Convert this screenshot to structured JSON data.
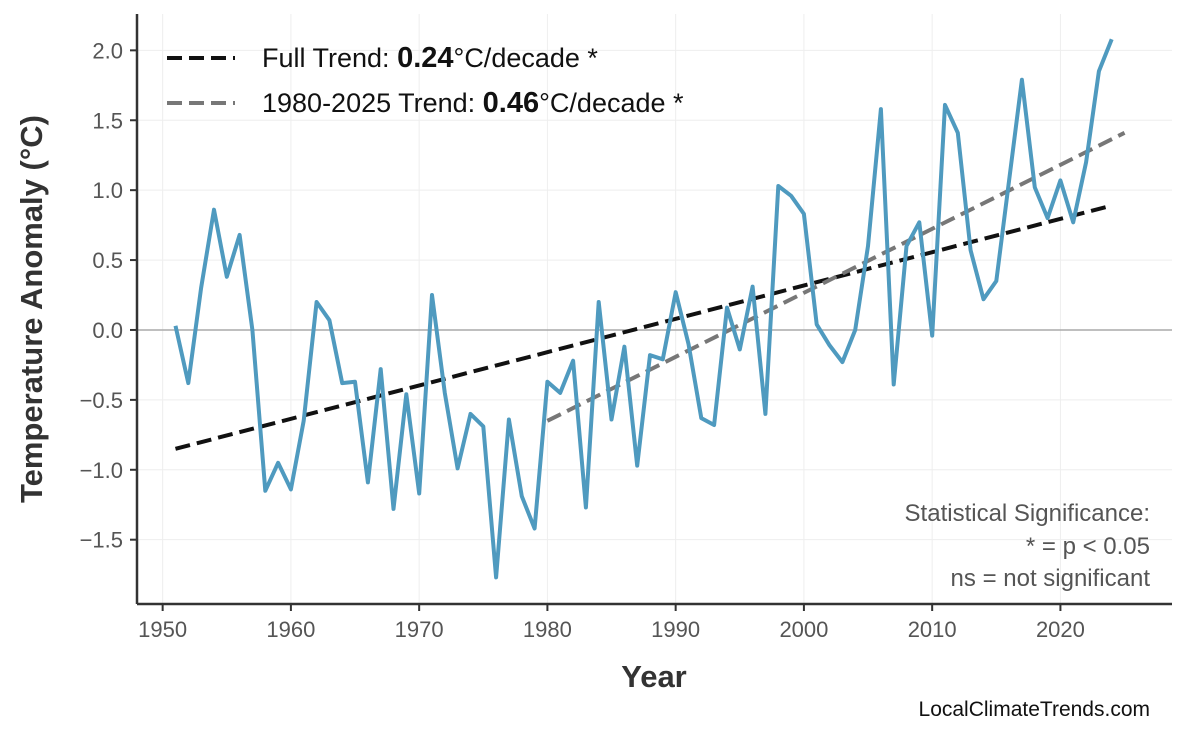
{
  "chart_data": {
    "type": "line",
    "xlabel": "Year",
    "ylabel": "Temperature Anomaly (°C)",
    "xlim": [
      1948,
      2028.7
    ],
    "ylim": [
      -1.96,
      2.26
    ],
    "grid": true,
    "legend_placement": "top-left",
    "x_ticks": [
      1950,
      1960,
      1970,
      1980,
      1990,
      2000,
      2010,
      2020
    ],
    "y_ticks": [
      -1.5,
      -1.0,
      -0.5,
      0.0,
      0.5,
      1.0,
      1.5,
      2.0
    ],
    "y_tick_labels": [
      "−1.5",
      "−1.0",
      "−0.5",
      "0.0",
      "0.5",
      "1.0",
      "1.5",
      "2.0"
    ],
    "series": [
      {
        "color": "#4f9abf",
        "x": [
          1951,
          1952,
          1953,
          1954,
          1955,
          1956,
          1957,
          1958,
          1959,
          1960,
          1961,
          1962,
          1963,
          1964,
          1965,
          1966,
          1967,
          1968,
          1969,
          1970,
          1971,
          1972,
          1973,
          1974,
          1975,
          1976,
          1977,
          1978,
          1979,
          1980,
          1981,
          1982,
          1983,
          1984,
          1985,
          1986,
          1987,
          1988,
          1989,
          1990,
          1991,
          1992,
          1993,
          1994,
          1995,
          1996,
          1997,
          1998,
          1999,
          2000,
          2001,
          2002,
          2003,
          2004,
          2005,
          2006,
          2007,
          2008,
          2009,
          2010,
          2011,
          2012,
          2013,
          2014,
          2015,
          2016,
          2017,
          2018,
          2019,
          2020,
          2021,
          2022,
          2023,
          2024
        ],
        "y": [
          0.03,
          -0.38,
          0.3,
          0.86,
          0.38,
          0.68,
          0.0,
          -1.15,
          -0.95,
          -1.14,
          -0.65,
          0.2,
          0.07,
          -0.38,
          -0.37,
          -1.09,
          -0.28,
          -1.28,
          -0.46,
          -1.17,
          0.25,
          -0.45,
          -0.99,
          -0.6,
          -0.69,
          -1.77,
          -0.64,
          -1.19,
          -1.42,
          -0.37,
          -0.45,
          -0.22,
          -1.27,
          0.2,
          -0.64,
          -0.12,
          -0.97,
          -0.18,
          -0.21,
          0.27,
          -0.1,
          -0.63,
          -0.68,
          0.16,
          -0.14,
          0.31,
          -0.6,
          1.03,
          0.96,
          0.83,
          0.04,
          -0.11,
          -0.23,
          0.0,
          0.6,
          1.58,
          -0.39,
          0.6,
          0.77,
          -0.04,
          1.61,
          1.41,
          0.57,
          0.22,
          0.35,
          1.07,
          1.79,
          1.02,
          0.8,
          1.07,
          0.77,
          1.2,
          1.85,
          2.08
        ]
      }
    ],
    "trends": [
      {
        "name_prefix": "Full Trend: ",
        "value": "0.24",
        "suffix": "°C/decade *",
        "color": "#111111",
        "x": [
          1951,
          2024
        ],
        "y": [
          -0.85,
          0.89
        ]
      },
      {
        "name_prefix": "1980-2025 Trend: ",
        "value": "0.46",
        "suffix": "°C/decade *",
        "color": "#777777",
        "x": [
          1980,
          2025
        ],
        "y": [
          -0.65,
          1.41
        ]
      }
    ],
    "annotations": {
      "significance_title": "Statistical Significance:",
      "significance_line1": "* = p < 0.05",
      "significance_line2": "ns = not significant"
    }
  },
  "credit": "LocalClimateTrends.com"
}
